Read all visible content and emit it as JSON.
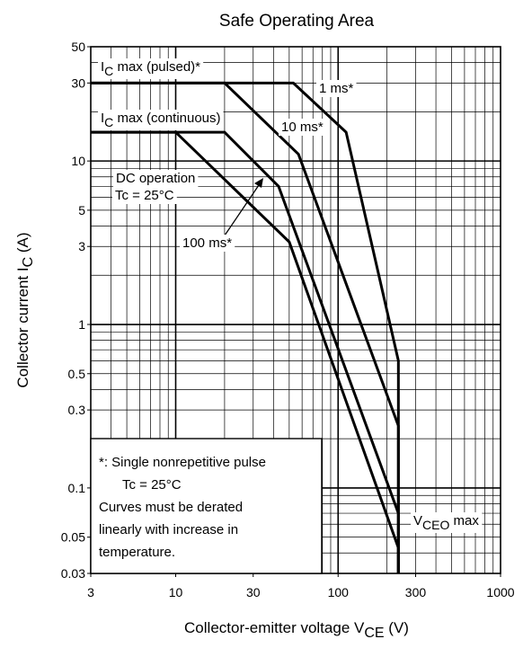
{
  "chart_data": {
    "type": "line",
    "title": "Safe Operating Area",
    "x_label": [
      "Collector-emitter voltage   V",
      "CE",
      "   (V)"
    ],
    "y_label": [
      "Collector current   I",
      "C",
      "   (A)"
    ],
    "log_x": true,
    "log_y": true,
    "grid": true,
    "xlim": [
      3,
      1000
    ],
    "ylim": [
      0.03,
      50
    ],
    "xticks": [
      3,
      10,
      30,
      100,
      300,
      1000
    ],
    "yticks": [
      0.03,
      0.05,
      0.1,
      0.3,
      0.5,
      1,
      3,
      5,
      10,
      30,
      50
    ],
    "series": [
      {
        "name": "1 ms*",
        "color": "#000000",
        "x": [
          3,
          53,
          112,
          235,
          235
        ],
        "values": [
          30,
          30,
          15,
          0.6,
          0.03
        ]
      },
      {
        "name": "10 ms*",
        "color": "#000000",
        "x": [
          3,
          20,
          57,
          235,
          235
        ],
        "values": [
          30,
          30,
          11,
          0.24,
          0.03
        ]
      },
      {
        "name": "100 ms*",
        "color": "#000000",
        "x": [
          3,
          20,
          43,
          235,
          235
        ],
        "values": [
          15,
          15,
          7,
          0.07,
          0.03
        ]
      },
      {
        "name": "DC operation",
        "color": "#000000",
        "x": [
          3,
          10,
          50,
          235,
          235
        ],
        "values": [
          15,
          15,
          3.2,
          0.043,
          0.03
        ]
      }
    ],
    "annotations": [
      [
        "I",
        "C",
        " max (pulsed)*"
      ],
      [
        "I",
        "C",
        " max (continuous)"
      ],
      [
        "Tc = 25°C"
      ],
      [
        "V",
        "CEO",
        " max"
      ]
    ],
    "note": [
      "*:  Single nonrepetitive pulse",
      "Tc = 25°C",
      "Curves must be derated",
      "linearly with increase in",
      "temperature."
    ]
  }
}
